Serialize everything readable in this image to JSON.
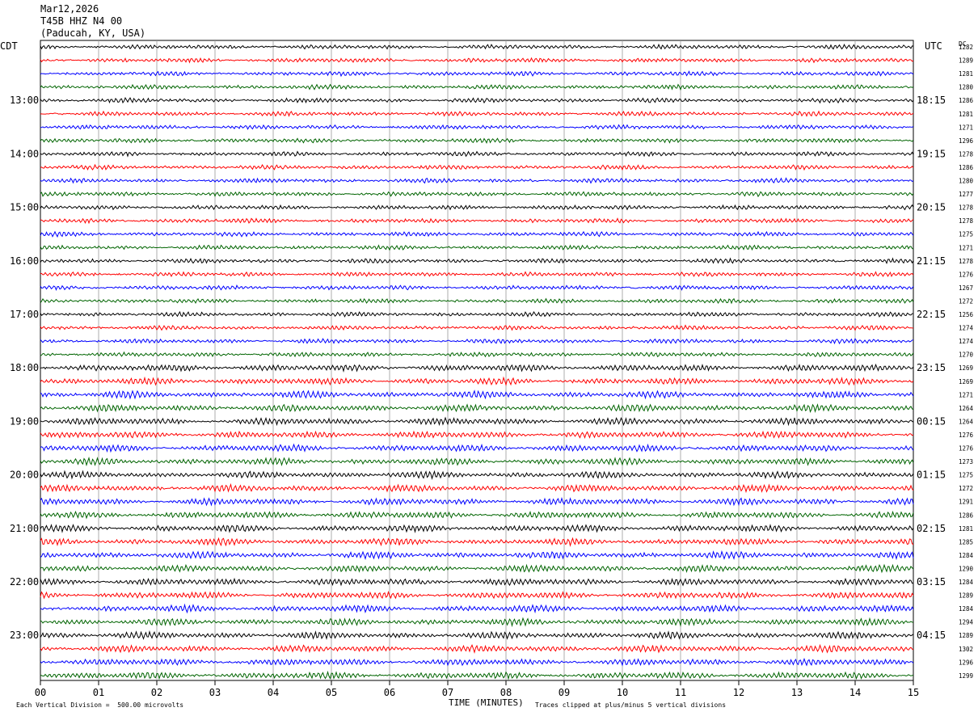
{
  "header": {
    "date": "Mar12,2026",
    "station": "T45B HHZ N4 00",
    "location": "(Paducah, KY, USA)"
  },
  "left_tz": "CDT",
  "right_tz": "UTC",
  "right_col_label": "DC",
  "footer": {
    "scale_note": "Each Vertical Division =  500.00 microvolts",
    "xlabel": "TIME (MINUTES)",
    "clip_note": "Traces clipped at plus/minus 5 vertical divisions"
  },
  "chart_data": {
    "type": "line",
    "xlim": [
      0,
      15
    ],
    "x_ticks": [
      "00",
      "01",
      "02",
      "03",
      "04",
      "05",
      "06",
      "07",
      "08",
      "09",
      "10",
      "11",
      "12",
      "13",
      "14",
      "15"
    ],
    "left_hour_labels": [
      "13:00",
      "14:00",
      "15:00",
      "16:00",
      "17:00",
      "18:00",
      "19:00",
      "20:00",
      "21:00",
      "22:00",
      "23:00"
    ],
    "right_hour_labels": [
      "18:15",
      "19:15",
      "20:15",
      "21:15",
      "22:15",
      "23:15",
      "00:15",
      "01:15",
      "02:15",
      "03:15",
      "04:15"
    ],
    "trace_colors": [
      "#000000",
      "#ff0000",
      "#0000ff",
      "#006400"
    ],
    "num_traces": 48,
    "dc_offsets": [
      "1282",
      "1289",
      "1281",
      "1280",
      "1286",
      "1281",
      "1271",
      "1296",
      "1278",
      "1286",
      "1280",
      "1277",
      "1278",
      "1278",
      "1275",
      "1271",
      "1278",
      "1276",
      "1267",
      "1272",
      "1256",
      "1274",
      "1274",
      "1270",
      "1269",
      "1269",
      "1271",
      "1264",
      "1264",
      "1276",
      "1276",
      "1273",
      "1275",
      "1272",
      "1291",
      "1286",
      "1281",
      "1285",
      "1284",
      "1290",
      "1284",
      "1289",
      "1284",
      "1294",
      "1289",
      "1302",
      "1296",
      "1299"
    ]
  }
}
